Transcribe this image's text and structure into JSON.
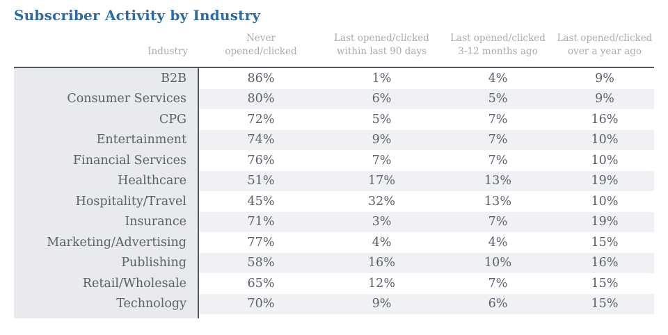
{
  "page": {
    "title": "Subscriber Activity by Industry"
  },
  "colors": {
    "title_blue": "#2e6ba4",
    "header_text": "#a7acb3",
    "body_text": "#5a616b",
    "rule_dark": "#4f565e",
    "industry_column_bg": "#e9eaed",
    "zebra_row_bg": "#f0f1f4",
    "background": "#ffffff"
  },
  "table": {
    "headers": [
      {
        "line1": "",
        "line2": "Industry"
      },
      {
        "line1": "Never",
        "line2": "opened/clicked"
      },
      {
        "line1": "Last opened/clicked",
        "line2": "within last 90 days"
      },
      {
        "line1": "Last opened/clicked",
        "line2": "3-12 months ago"
      },
      {
        "line1": "Last opened/clicked",
        "line2": "over a year ago"
      }
    ],
    "rows": [
      {
        "industry": "B2B",
        "values": [
          "86%",
          "1%",
          "4%",
          "9%"
        ]
      },
      {
        "industry": "Consumer Services",
        "values": [
          "80%",
          "6%",
          "5%",
          "9%"
        ]
      },
      {
        "industry": "CPG",
        "values": [
          "72%",
          "5%",
          "7%",
          "16%"
        ]
      },
      {
        "industry": "Entertainment",
        "values": [
          "74%",
          "9%",
          "7%",
          "10%"
        ]
      },
      {
        "industry": "Financial Services",
        "values": [
          "76%",
          "7%",
          "7%",
          "10%"
        ]
      },
      {
        "industry": "Healthcare",
        "values": [
          "51%",
          "17%",
          "13%",
          "19%"
        ]
      },
      {
        "industry": "Hospitality/Travel",
        "values": [
          "45%",
          "32%",
          "13%",
          "10%"
        ]
      },
      {
        "industry": "Insurance",
        "values": [
          "71%",
          "3%",
          "7%",
          "19%"
        ]
      },
      {
        "industry": "Marketing/Advertising",
        "values": [
          "77%",
          "4%",
          "4%",
          "15%"
        ]
      },
      {
        "industry": "Publishing",
        "values": [
          "58%",
          "16%",
          "10%",
          "16%"
        ]
      },
      {
        "industry": "Retail/Wholesale",
        "values": [
          "65%",
          "12%",
          "7%",
          "15%"
        ]
      },
      {
        "industry": "Technology",
        "values": [
          "70%",
          "9%",
          "6%",
          "15%"
        ]
      }
    ]
  },
  "chart_data": {
    "type": "table",
    "title": "Subscriber Activity by Industry",
    "columns": [
      "Industry",
      "Never opened/clicked",
      "Last opened/clicked within last 90 days",
      "Last opened/clicked 3-12 months ago",
      "Last opened/clicked over a year ago"
    ],
    "categories": [
      "B2B",
      "Consumer Services",
      "CPG",
      "Entertainment",
      "Financial Services",
      "Healthcare",
      "Hospitality/Travel",
      "Insurance",
      "Marketing/Advertising",
      "Publishing",
      "Retail/Wholesale",
      "Technology"
    ],
    "series": [
      {
        "name": "Never opened/clicked",
        "unit": "%",
        "values": [
          86,
          80,
          72,
          74,
          76,
          51,
          45,
          71,
          77,
          58,
          65,
          70
        ]
      },
      {
        "name": "Last opened/clicked within last 90 days",
        "unit": "%",
        "values": [
          1,
          6,
          5,
          9,
          7,
          17,
          32,
          3,
          4,
          16,
          12,
          9
        ]
      },
      {
        "name": "Last opened/clicked 3-12 months ago",
        "unit": "%",
        "values": [
          4,
          5,
          7,
          7,
          7,
          13,
          13,
          7,
          4,
          10,
          7,
          6
        ]
      },
      {
        "name": "Last opened/clicked over a year ago",
        "unit": "%",
        "values": [
          9,
          9,
          16,
          10,
          10,
          19,
          10,
          19,
          15,
          16,
          15,
          15
        ]
      }
    ],
    "layout": {
      "zebra_striping": true,
      "industry_column_shaded": true,
      "grid": false
    }
  }
}
